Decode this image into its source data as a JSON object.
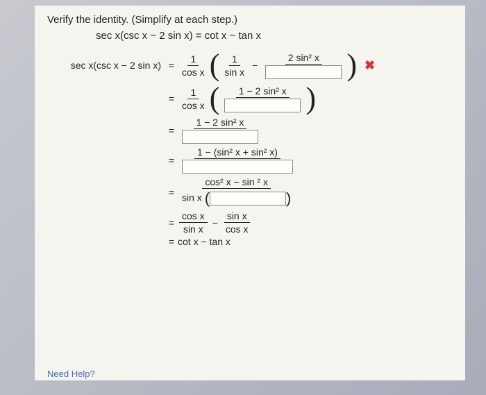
{
  "instruction": "Verify the identity. (Simplify at each step.)",
  "identity": "sec x(csc x − 2 sin x) = cot x − tan x",
  "lhs": "sec x(csc x − 2 sin x)",
  "one": "1",
  "cosx": "cos x",
  "sinx": "sin x",
  "twosin2x": "2 sin² x",
  "expr_1m2sin2x": "1 − 2 sin² x",
  "expr_1msin2sin2": "1 − (sin² x + sin² x)",
  "expr_cos2msin2": "cos² x − sin ² x",
  "sinx_paren": "sin x",
  "frac_cos_sin": "cos x",
  "frac_sin_cos": "sin x",
  "final": "cot x − tan x",
  "eq": "=",
  "need": "Need Help?",
  "xmark": "✖",
  "minus": "−",
  "blank_style": {
    "border_color": "#888888",
    "background": "#fdfdfa"
  },
  "page_bg": "#f5f5f0"
}
